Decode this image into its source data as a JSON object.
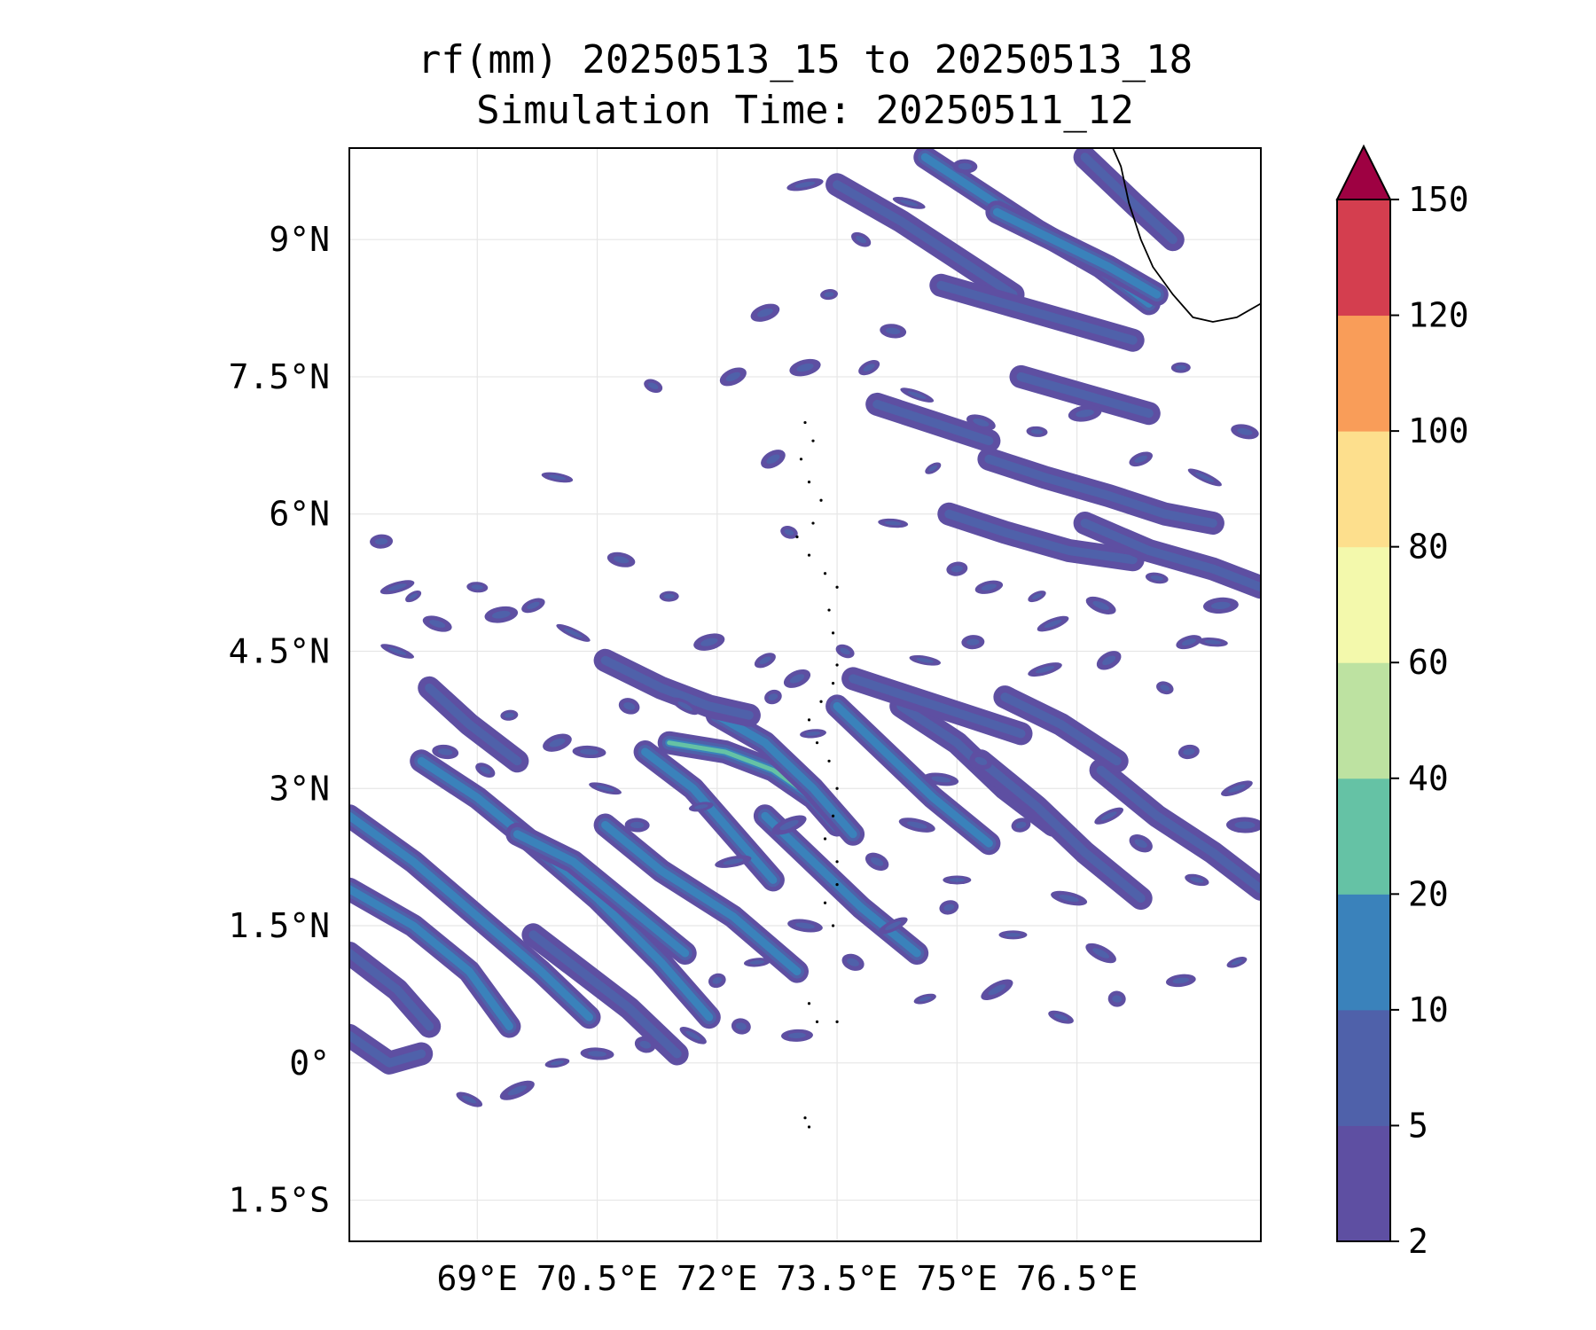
{
  "title": {
    "line1": "rf(mm) 20250513_15 to 20250513_18",
    "line2": "Simulation Time: 20250511_12"
  },
  "chart_data": {
    "type": "heatmap",
    "subtype": "filled-contour-map",
    "variable": "rf",
    "unit": "mm",
    "xlim": [
      67.4,
      78.8
    ],
    "ylim": [
      -1.95,
      10.0
    ],
    "xticks": [
      {
        "value": 69.0,
        "label": "69°E"
      },
      {
        "value": 70.5,
        "label": "70.5°E"
      },
      {
        "value": 72.0,
        "label": "72°E"
      },
      {
        "value": 73.5,
        "label": "73.5°E"
      },
      {
        "value": 75.0,
        "label": "75°E"
      },
      {
        "value": 76.5,
        "label": "76.5°E"
      }
    ],
    "yticks": [
      {
        "value": -1.5,
        "label": "1.5°S"
      },
      {
        "value": 0.0,
        "label": "0°"
      },
      {
        "value": 1.5,
        "label": "1.5°N"
      },
      {
        "value": 3.0,
        "label": "3°N"
      },
      {
        "value": 4.5,
        "label": "4.5°N"
      },
      {
        "value": 6.0,
        "label": "6°N"
      },
      {
        "value": 7.5,
        "label": "7.5°N"
      },
      {
        "value": 9.0,
        "label": "9°N"
      }
    ],
    "grid": true,
    "colorbar": {
      "levels": [
        2,
        5,
        10,
        20,
        40,
        60,
        80,
        100,
        120,
        150
      ],
      "labels": [
        "2",
        "5",
        "10",
        "20",
        "40",
        "60",
        "80",
        "100",
        "120",
        "150"
      ],
      "colors": [
        "#5e4fa2",
        "#4f61aa",
        "#3a82bb",
        "#65c2a5",
        "#bde2a1",
        "#f3f9ac",
        "#fddf8d",
        "#f99d59",
        "#d43e4f"
      ],
      "extend_color": "#9e0142",
      "extend": "max",
      "placement": "right"
    },
    "rain_bands": [
      {
        "path": [
          [
            67.4,
            2.7
          ],
          [
            68.2,
            2.2
          ],
          [
            69.0,
            1.6
          ],
          [
            69.8,
            1.0
          ],
          [
            70.4,
            0.5
          ]
        ],
        "intensity": 2
      },
      {
        "path": [
          [
            67.4,
            1.9
          ],
          [
            68.2,
            1.5
          ],
          [
            68.9,
            1.0
          ],
          [
            69.4,
            0.4
          ]
        ],
        "intensity": 2
      },
      {
        "path": [
          [
            67.4,
            1.2
          ],
          [
            68.0,
            0.8
          ],
          [
            68.4,
            0.4
          ]
        ],
        "intensity": 1
      },
      {
        "path": [
          [
            67.4,
            0.3
          ],
          [
            67.9,
            -0.0
          ],
          [
            68.3,
            0.1
          ]
        ],
        "intensity": 1
      },
      {
        "path": [
          [
            68.3,
            3.3
          ],
          [
            69.0,
            2.9
          ],
          [
            69.7,
            2.4
          ],
          [
            70.5,
            1.8
          ],
          [
            71.3,
            1.1
          ],
          [
            71.9,
            0.5
          ]
        ],
        "intensity": 2
      },
      {
        "path": [
          [
            69.7,
            1.4
          ],
          [
            70.3,
            1.0
          ],
          [
            70.9,
            0.6
          ],
          [
            71.5,
            0.1
          ]
        ],
        "intensity": 1
      },
      {
        "path": [
          [
            69.5,
            2.5
          ],
          [
            70.2,
            2.2
          ],
          [
            70.9,
            1.7
          ],
          [
            71.6,
            1.2
          ]
        ],
        "intensity": 2
      },
      {
        "path": [
          [
            70.6,
            2.6
          ],
          [
            71.3,
            2.1
          ],
          [
            72.2,
            1.6
          ],
          [
            73.0,
            1.0
          ]
        ],
        "intensity": 2
      },
      {
        "path": [
          [
            71.1,
            3.4
          ],
          [
            71.7,
            3.0
          ],
          [
            72.2,
            2.5
          ],
          [
            72.7,
            2.0
          ]
        ],
        "intensity": 2
      },
      {
        "path": [
          [
            71.4,
            3.5
          ],
          [
            72.1,
            3.4
          ],
          [
            72.7,
            3.2
          ],
          [
            73.2,
            2.9
          ],
          [
            73.5,
            2.6
          ]
        ],
        "intensity": 3
      },
      {
        "path": [
          [
            72.0,
            3.8
          ],
          [
            72.6,
            3.5
          ],
          [
            73.2,
            3.0
          ],
          [
            73.7,
            2.5
          ]
        ],
        "intensity": 2
      },
      {
        "path": [
          [
            72.6,
            2.7
          ],
          [
            73.2,
            2.2
          ],
          [
            73.8,
            1.7
          ],
          [
            74.5,
            1.2
          ]
        ],
        "intensity": 2
      },
      {
        "path": [
          [
            73.5,
            3.9
          ],
          [
            74.1,
            3.4
          ],
          [
            74.7,
            2.9
          ],
          [
            75.4,
            2.4
          ]
        ],
        "intensity": 2
      },
      {
        "path": [
          [
            74.3,
            3.9
          ],
          [
            75.0,
            3.5
          ],
          [
            75.6,
            3.0
          ],
          [
            76.2,
            2.6
          ]
        ],
        "intensity": 1
      },
      {
        "path": [
          [
            75.3,
            3.3
          ],
          [
            76.0,
            2.8
          ],
          [
            76.6,
            2.3
          ],
          [
            77.3,
            1.8
          ]
        ],
        "intensity": 1
      },
      {
        "path": [
          [
            76.8,
            3.2
          ],
          [
            77.5,
            2.7
          ],
          [
            78.2,
            2.3
          ],
          [
            78.8,
            1.9
          ]
        ],
        "intensity": 1
      },
      {
        "path": [
          [
            75.6,
            4.0
          ],
          [
            76.3,
            3.7
          ],
          [
            77.0,
            3.3
          ]
        ],
        "intensity": 1
      },
      {
        "path": [
          [
            73.7,
            4.2
          ],
          [
            74.4,
            4.0
          ],
          [
            75.1,
            3.8
          ],
          [
            75.8,
            3.6
          ]
        ],
        "intensity": 1
      },
      {
        "path": [
          [
            70.6,
            4.4
          ],
          [
            71.3,
            4.1
          ],
          [
            71.9,
            3.9
          ],
          [
            72.4,
            3.8
          ]
        ],
        "intensity": 1
      },
      {
        "path": [
          [
            68.4,
            4.1
          ],
          [
            68.9,
            3.7
          ],
          [
            69.5,
            3.3
          ]
        ],
        "intensity": 1
      },
      {
        "path": [
          [
            74.9,
            6.0
          ],
          [
            75.6,
            5.8
          ],
          [
            76.4,
            5.6
          ],
          [
            77.2,
            5.5
          ]
        ],
        "intensity": 1
      },
      {
        "path": [
          [
            75.4,
            6.6
          ],
          [
            76.1,
            6.4
          ],
          [
            76.9,
            6.2
          ],
          [
            77.6,
            6.0
          ],
          [
            78.2,
            5.9
          ]
        ],
        "intensity": 1
      },
      {
        "path": [
          [
            76.6,
            5.9
          ],
          [
            77.4,
            5.6
          ],
          [
            78.2,
            5.4
          ],
          [
            78.8,
            5.2
          ]
        ],
        "intensity": 1
      },
      {
        "path": [
          [
            73.5,
            9.6
          ],
          [
            74.3,
            9.2
          ],
          [
            75.0,
            8.8
          ],
          [
            75.7,
            8.4
          ]
        ],
        "intensity": 1
      },
      {
        "path": [
          [
            74.6,
            9.9
          ],
          [
            75.3,
            9.5
          ],
          [
            76.0,
            9.1
          ],
          [
            76.8,
            8.7
          ],
          [
            77.4,
            8.3
          ]
        ],
        "intensity": 2
      },
      {
        "path": [
          [
            75.5,
            9.3
          ],
          [
            76.2,
            9.0
          ],
          [
            76.9,
            8.7
          ],
          [
            77.5,
            8.4
          ]
        ],
        "intensity": 2
      },
      {
        "path": [
          [
            74.8,
            8.5
          ],
          [
            75.6,
            8.3
          ],
          [
            76.4,
            8.1
          ],
          [
            77.2,
            7.9
          ]
        ],
        "intensity": 1
      },
      {
        "path": [
          [
            76.6,
            9.9
          ],
          [
            77.2,
            9.4
          ],
          [
            77.7,
            9.0
          ]
        ],
        "intensity": 1
      },
      {
        "path": [
          [
            75.8,
            7.5
          ],
          [
            76.6,
            7.3
          ],
          [
            77.4,
            7.1
          ]
        ],
        "intensity": 1
      },
      {
        "path": [
          [
            74.0,
            7.2
          ],
          [
            74.7,
            7.0
          ],
          [
            75.4,
            6.8
          ]
        ],
        "intensity": 1
      }
    ],
    "rain_patches": [
      [
        68.2,
        5.1
      ],
      [
        68.5,
        4.8
      ],
      [
        69.0,
        5.2
      ],
      [
        69.3,
        4.9
      ],
      [
        69.7,
        5.0
      ],
      [
        70.2,
        4.7
      ],
      [
        70.8,
        5.5
      ],
      [
        71.4,
        5.1
      ],
      [
        71.9,
        4.6
      ],
      [
        72.6,
        4.4
      ],
      [
        68.0,
        4.5
      ],
      [
        68.6,
        3.4
      ],
      [
        69.4,
        3.8
      ],
      [
        70.0,
        3.5
      ],
      [
        69.1,
        3.2
      ],
      [
        70.6,
        3.0
      ],
      [
        71.0,
        2.6
      ],
      [
        72.2,
        2.2
      ],
      [
        73.0,
        4.2
      ],
      [
        73.6,
        4.5
      ],
      [
        74.6,
        4.4
      ],
      [
        75.2,
        4.6
      ],
      [
        76.1,
        4.3
      ],
      [
        76.9,
        4.4
      ],
      [
        77.6,
        4.1
      ],
      [
        78.2,
        4.6
      ],
      [
        77.9,
        3.4
      ],
      [
        78.5,
        3.0
      ],
      [
        77.3,
        2.4
      ],
      [
        76.4,
        1.8
      ],
      [
        75.7,
        1.4
      ],
      [
        74.9,
        1.7
      ],
      [
        74.2,
        1.5
      ],
      [
        73.7,
        1.1
      ],
      [
        73.1,
        1.5
      ],
      [
        72.5,
        1.1
      ],
      [
        72.0,
        0.9
      ],
      [
        71.7,
        0.3
      ],
      [
        71.1,
        0.2
      ],
      [
        70.5,
        0.1
      ],
      [
        70.0,
        0.0
      ],
      [
        69.5,
        -0.3
      ],
      [
        68.9,
        -0.4
      ],
      [
        72.3,
        0.4
      ],
      [
        73.0,
        0.3
      ],
      [
        74.6,
        0.7
      ],
      [
        75.5,
        0.8
      ],
      [
        76.3,
        0.5
      ],
      [
        77.0,
        0.7
      ],
      [
        77.8,
        0.9
      ],
      [
        78.5,
        1.1
      ],
      [
        76.8,
        1.2
      ],
      [
        78.0,
        2.0
      ],
      [
        78.6,
        2.6
      ],
      [
        75.4,
        5.2
      ],
      [
        76.0,
        5.1
      ],
      [
        76.8,
        5.0
      ],
      [
        77.5,
        5.3
      ],
      [
        78.3,
        5.0
      ],
      [
        77.9,
        4.6
      ],
      [
        74.7,
        6.5
      ],
      [
        75.3,
        7.0
      ],
      [
        76.0,
        6.9
      ],
      [
        76.6,
        7.1
      ],
      [
        77.3,
        6.6
      ],
      [
        78.1,
        6.4
      ],
      [
        78.6,
        6.9
      ],
      [
        77.8,
        7.6
      ],
      [
        73.1,
        7.6
      ],
      [
        73.9,
        7.6
      ],
      [
        74.5,
        7.3
      ],
      [
        74.2,
        8.0
      ],
      [
        73.4,
        8.4
      ],
      [
        72.6,
        8.2
      ],
      [
        73.8,
        9.0
      ],
      [
        74.4,
        9.4
      ],
      [
        75.1,
        9.8
      ],
      [
        73.1,
        9.6
      ],
      [
        72.2,
        7.5
      ],
      [
        71.2,
        7.4
      ],
      [
        70.0,
        6.4
      ],
      [
        67.8,
        5.7
      ],
      [
        68.0,
        5.2
      ],
      [
        72.7,
        6.6
      ],
      [
        72.9,
        5.8
      ],
      [
        74.2,
        5.9
      ],
      [
        75.0,
        5.4
      ],
      [
        76.2,
        4.8
      ],
      [
        74.0,
        2.2
      ],
      [
        74.5,
        2.6
      ],
      [
        75.0,
        2.0
      ],
      [
        75.8,
        2.6
      ],
      [
        76.9,
        2.7
      ],
      [
        75.3,
        3.3
      ],
      [
        74.8,
        3.1
      ],
      [
        73.2,
        3.6
      ],
      [
        72.7,
        4.0
      ],
      [
        71.6,
        3.9
      ],
      [
        70.9,
        3.9
      ],
      [
        70.4,
        3.4
      ],
      [
        71.8,
        2.8
      ],
      [
        72.9,
        2.6
      ]
    ],
    "coastline": [
      [
        78.8,
        8.3
      ],
      [
        78.5,
        8.15
      ],
      [
        78.2,
        8.1
      ],
      [
        77.95,
        8.15
      ],
      [
        77.7,
        8.4
      ],
      [
        77.45,
        8.7
      ],
      [
        77.3,
        9.0
      ],
      [
        77.15,
        9.4
      ],
      [
        77.05,
        9.8
      ],
      [
        76.95,
        10.0
      ]
    ],
    "islands": [
      [
        73.1,
        7.0
      ],
      [
        73.2,
        6.8
      ],
      [
        73.05,
        6.6
      ],
      [
        73.15,
        6.35
      ],
      [
        73.3,
        6.15
      ],
      [
        73.2,
        5.9
      ],
      [
        73.0,
        5.75
      ],
      [
        73.15,
        5.55
      ],
      [
        73.35,
        5.35
      ],
      [
        73.5,
        5.2
      ],
      [
        73.4,
        4.95
      ],
      [
        73.45,
        4.7
      ],
      [
        73.5,
        4.35
      ],
      [
        73.45,
        4.15
      ],
      [
        73.3,
        3.95
      ],
      [
        73.15,
        3.75
      ],
      [
        73.25,
        3.5
      ],
      [
        73.4,
        3.3
      ],
      [
        73.5,
        3.0
      ],
      [
        73.45,
        2.7
      ],
      [
        73.35,
        2.45
      ],
      [
        73.5,
        2.2
      ],
      [
        73.5,
        1.95
      ],
      [
        73.35,
        1.75
      ],
      [
        73.45,
        1.5
      ],
      [
        73.15,
        0.65
      ],
      [
        73.25,
        0.45
      ],
      [
        73.5,
        0.45
      ],
      [
        73.1,
        -0.6
      ],
      [
        73.15,
        -0.7
      ]
    ]
  }
}
